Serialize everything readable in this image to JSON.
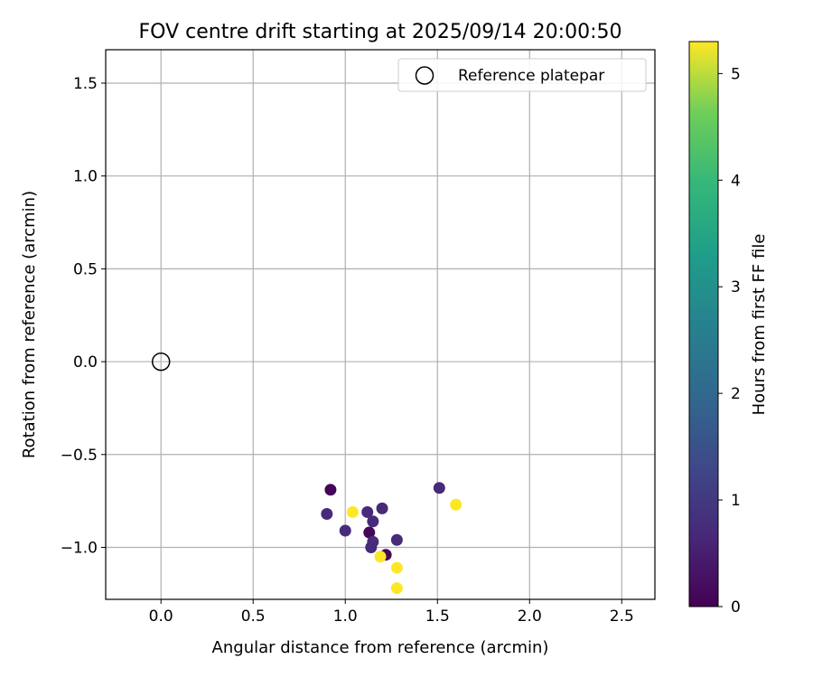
{
  "chart_data": {
    "type": "scatter",
    "title": "FOV centre drift starting at 2025/09/14 20:00:50",
    "xlabel": "Angular distance from reference (arcmin)",
    "ylabel": "Rotation from reference (arcmin)",
    "xlim": [
      -0.3,
      2.68
    ],
    "ylim": [
      -1.28,
      1.68
    ],
    "xticks": [
      0.0,
      0.5,
      1.0,
      1.5,
      2.0,
      2.5
    ],
    "xtick_labels": [
      "0.0",
      "0.5",
      "1.0",
      "1.5",
      "2.0",
      "2.5"
    ],
    "yticks": [
      1.5,
      1.0,
      0.5,
      0.0,
      -0.5,
      -1.0
    ],
    "ytick_labels": [
      "1.5",
      "1.0",
      "0.5",
      "0.0",
      "−0.5",
      "−1.0"
    ],
    "grid": true,
    "legend": {
      "position": "top-right",
      "entries": [
        "Reference platepar"
      ]
    },
    "reference": {
      "label": "Reference platepar",
      "x": 0.0,
      "y": 0.0
    },
    "colorbar": {
      "label": "Hours from first FF file",
      "min": 0,
      "max": 5.3,
      "ticks": [
        0,
        1,
        2,
        3,
        4,
        5
      ],
      "tick_labels": [
        "0",
        "1",
        "2",
        "3",
        "4",
        "5"
      ],
      "colormap": "viridis"
    },
    "points": [
      {
        "x": 0.92,
        "y": -0.69,
        "hours": 0.05
      },
      {
        "x": 0.9,
        "y": -0.82,
        "hours": 0.7
      },
      {
        "x": 1.0,
        "y": -0.91,
        "hours": 0.75
      },
      {
        "x": 1.04,
        "y": -0.81,
        "hours": 5.3
      },
      {
        "x": 1.12,
        "y": -0.81,
        "hours": 0.7
      },
      {
        "x": 1.13,
        "y": -0.92,
        "hours": 0.1
      },
      {
        "x": 1.15,
        "y": -0.86,
        "hours": 0.7
      },
      {
        "x": 1.2,
        "y": -0.79,
        "hours": 0.7
      },
      {
        "x": 1.15,
        "y": -0.97,
        "hours": 0.75
      },
      {
        "x": 1.14,
        "y": -1.0,
        "hours": 0.7
      },
      {
        "x": 1.22,
        "y": -1.04,
        "hours": 0.1
      },
      {
        "x": 1.19,
        "y": -1.05,
        "hours": 5.3
      },
      {
        "x": 1.28,
        "y": -0.96,
        "hours": 0.75
      },
      {
        "x": 1.28,
        "y": -1.11,
        "hours": 5.3
      },
      {
        "x": 1.28,
        "y": -1.22,
        "hours": 5.3
      },
      {
        "x": 1.51,
        "y": -0.68,
        "hours": 0.7
      },
      {
        "x": 1.6,
        "y": -0.77,
        "hours": 5.3
      }
    ]
  }
}
